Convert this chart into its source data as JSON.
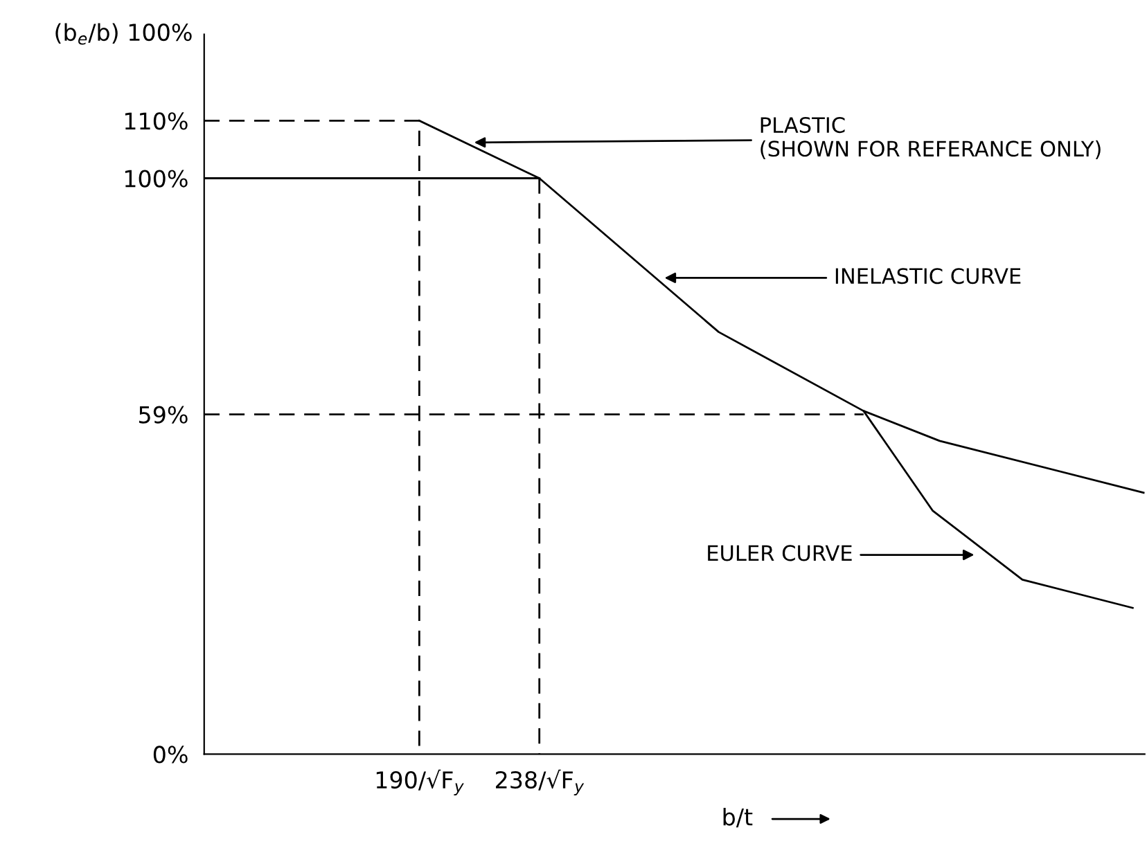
{
  "chart_data": {
    "type": "line",
    "ylabel": "(b$_{e}$/b) 100%",
    "xlabel": "b/t",
    "xlim": [
      104,
      480
    ],
    "ylim": [
      0,
      125
    ],
    "xticks": [
      {
        "value": 190,
        "label": "190/√F$_{y}$"
      },
      {
        "value": 238,
        "label": "238/√F$_{y}$"
      }
    ],
    "yticks": [
      {
        "value": 0,
        "label": "0%"
      },
      {
        "value": 59,
        "label": "59%"
      },
      {
        "value": 100,
        "label": "100%"
      },
      {
        "value": 110,
        "label": "110%"
      }
    ],
    "grid": false,
    "legend": false,
    "series": [
      {
        "color": "#000000",
        "line_style": "solid",
        "x": [
          190,
          238
        ],
        "values": [
          110,
          100
        ]
      },
      {
        "color": "#000000",
        "line_style": "solid",
        "x": [
          104,
          238,
          309.7,
          367.6,
          398,
          479.6
        ],
        "values": [
          100,
          100,
          73.3,
          59.6,
          54.4,
          45.4
        ]
      },
      {
        "color": "#000000",
        "line_style": "solid",
        "x": [
          367.6,
          395.2,
          431.1,
          475.2
        ],
        "values": [
          59.6,
          42.3,
          30.3,
          25.4
        ]
      },
      {
        "color": "#000000",
        "line_style": "dashed",
        "x": [
          104,
          190,
          190
        ],
        "values": [
          110,
          110,
          0
        ]
      },
      {
        "color": "#000000",
        "line_style": "dashed",
        "x": [
          238,
          238
        ],
        "values": [
          100,
          0
        ]
      },
      {
        "color": "#000000",
        "line_style": "dashed",
        "x": [
          104,
          367.6
        ],
        "values": [
          59,
          59
        ]
      }
    ],
    "annotations": [
      {
        "text": "PLASTIC\n(SHOWN FOR REFERANCE ONLY)",
        "x": 210.4,
        "y": 106.2
      },
      {
        "text": "INELASTIC CURVE",
        "x": 286.5,
        "y": 82.7
      },
      {
        "text": "EULER CURVE",
        "x": 413.4,
        "y": 34.6
      }
    ]
  }
}
